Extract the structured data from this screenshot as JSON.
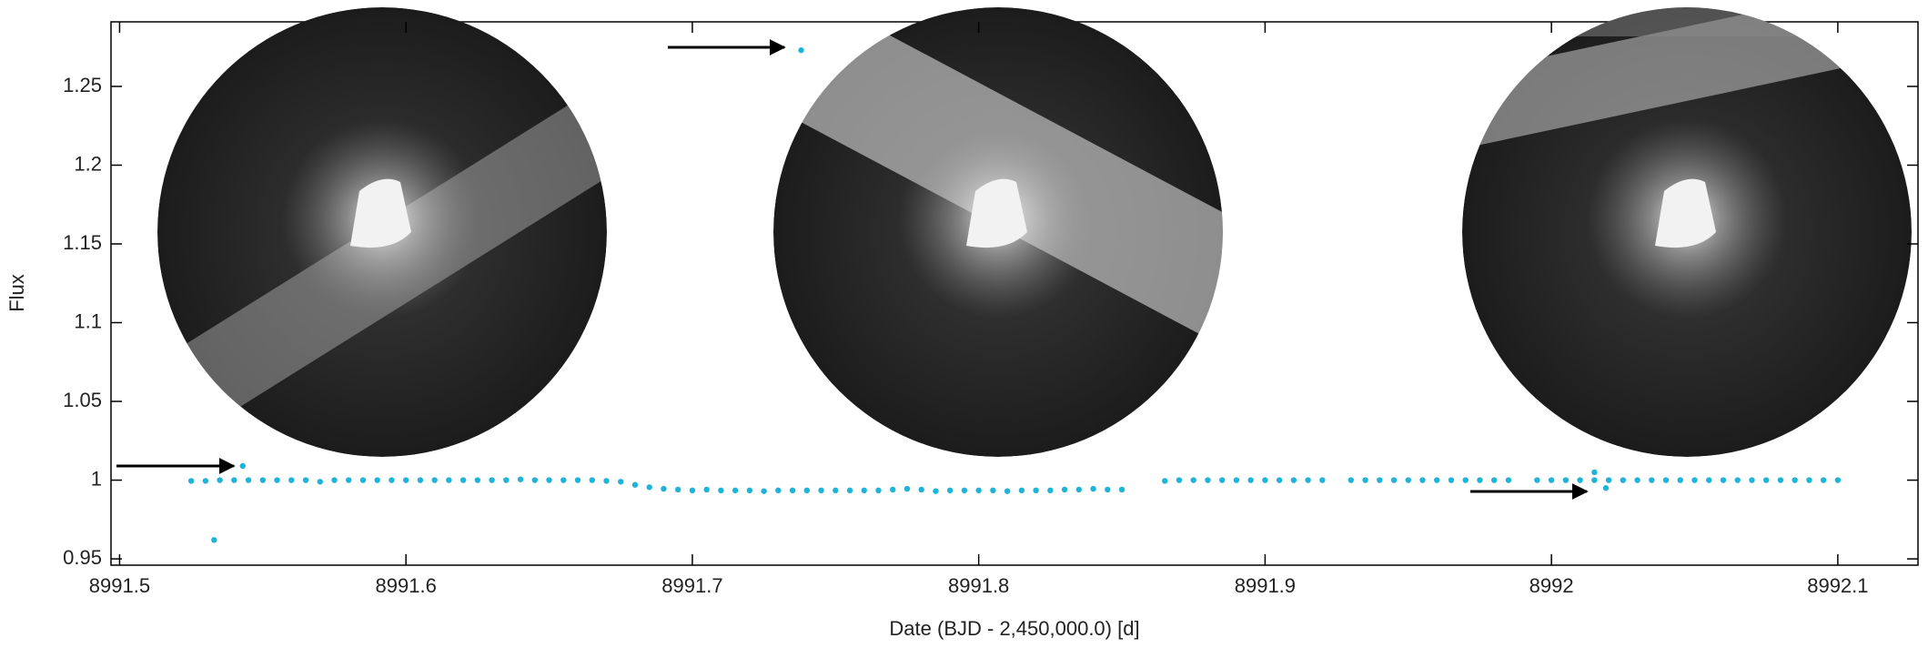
{
  "chart_data": {
    "type": "scatter",
    "xlabel": "Date (BJD - 2,450,000.0) [d]",
    "ylabel": "Flux",
    "color": "#1fb3d9",
    "x": [
      8991.525,
      8991.53,
      8991.535,
      8991.54,
      8991.545,
      8991.55,
      8991.555,
      8991.56,
      8991.565,
      8991.57,
      8991.575,
      8991.58,
      8991.585,
      8991.59,
      8991.595,
      8991.6,
      8991.605,
      8991.61,
      8991.615,
      8991.62,
      8991.625,
      8991.63,
      8991.635,
      8991.64,
      8991.645,
      8991.65,
      8991.655,
      8991.66,
      8991.665,
      8991.67,
      8991.675,
      8991.68,
      8991.685,
      8991.69,
      8991.695,
      8991.7,
      8991.705,
      8991.71,
      8991.715,
      8991.72,
      8991.725,
      8991.73,
      8991.735,
      8991.74,
      8991.745,
      8991.75,
      8991.755,
      8991.76,
      8991.765,
      8991.77,
      8991.775,
      8991.78,
      8991.785,
      8991.79,
      8991.795,
      8991.8,
      8991.805,
      8991.81,
      8991.815,
      8991.82,
      8991.825,
      8991.83,
      8991.835,
      8991.84,
      8991.845,
      8991.85,
      8991.865,
      8991.87,
      8991.875,
      8991.88,
      8991.885,
      8991.89,
      8991.895,
      8991.9,
      8991.905,
      8991.91,
      8991.915,
      8991.92,
      8991.93,
      8991.935,
      8991.94,
      8991.945,
      8991.95,
      8991.955,
      8991.96,
      8991.965,
      8991.97,
      8991.975,
      8991.98,
      8991.985,
      8991.995,
      8992,
      8992.005,
      8992.01,
      8992.015,
      8992.02,
      8992.025,
      8992.03,
      8992.035,
      8992.04,
      8992.045,
      8992.05,
      8992.055,
      8992.06,
      8992.065,
      8992.07,
      8992.075,
      8992.08,
      8992.085,
      8992.09,
      8992.095,
      8992.1,
      8991.533,
      8991.543,
      8991.738,
      8992.015,
      8992.019
    ],
    "y": [
      0.9995,
      0.9995,
      1,
      1,
      1,
      1,
      1,
      1,
      1,
      0.999,
      1,
      1,
      1,
      1,
      1,
      1,
      1,
      1,
      1,
      1,
      1,
      1,
      1,
      1.0005,
      1,
      1,
      1,
      1,
      1,
      0.9995,
      0.999,
      0.997,
      0.9955,
      0.9945,
      0.994,
      0.9935,
      0.994,
      0.9935,
      0.9935,
      0.9935,
      0.993,
      0.9935,
      0.9935,
      0.9935,
      0.9935,
      0.9935,
      0.9935,
      0.9935,
      0.9935,
      0.994,
      0.9945,
      0.994,
      0.993,
      0.9935,
      0.9935,
      0.9935,
      0.9935,
      0.993,
      0.9935,
      0.9935,
      0.9935,
      0.994,
      0.994,
      0.9945,
      0.994,
      0.994,
      0.9995,
      1,
      1,
      1,
      1,
      1,
      1,
      1,
      1,
      1,
      1,
      1,
      1,
      1,
      1,
      1,
      1,
      1,
      1,
      1,
      1,
      1,
      1,
      1,
      1,
      1,
      1,
      1,
      1,
      1,
      1,
      1,
      1,
      1,
      1,
      1,
      1,
      1,
      1,
      1,
      1,
      1,
      1,
      1,
      1,
      1,
      0.962,
      1.009,
      1.273,
      1.005,
      0.995
    ],
    "xlim": [
      8991.497,
      8992.128
    ],
    "xticks": [
      8991.5,
      8991.6,
      8991.7,
      8991.8,
      8991.9,
      8992,
      8992.1
    ],
    "ylim": [
      0.946,
      1.291
    ],
    "yticks": [
      0.95,
      1,
      1.05,
      1.1,
      1.15,
      1.2,
      1.25
    ]
  }
}
